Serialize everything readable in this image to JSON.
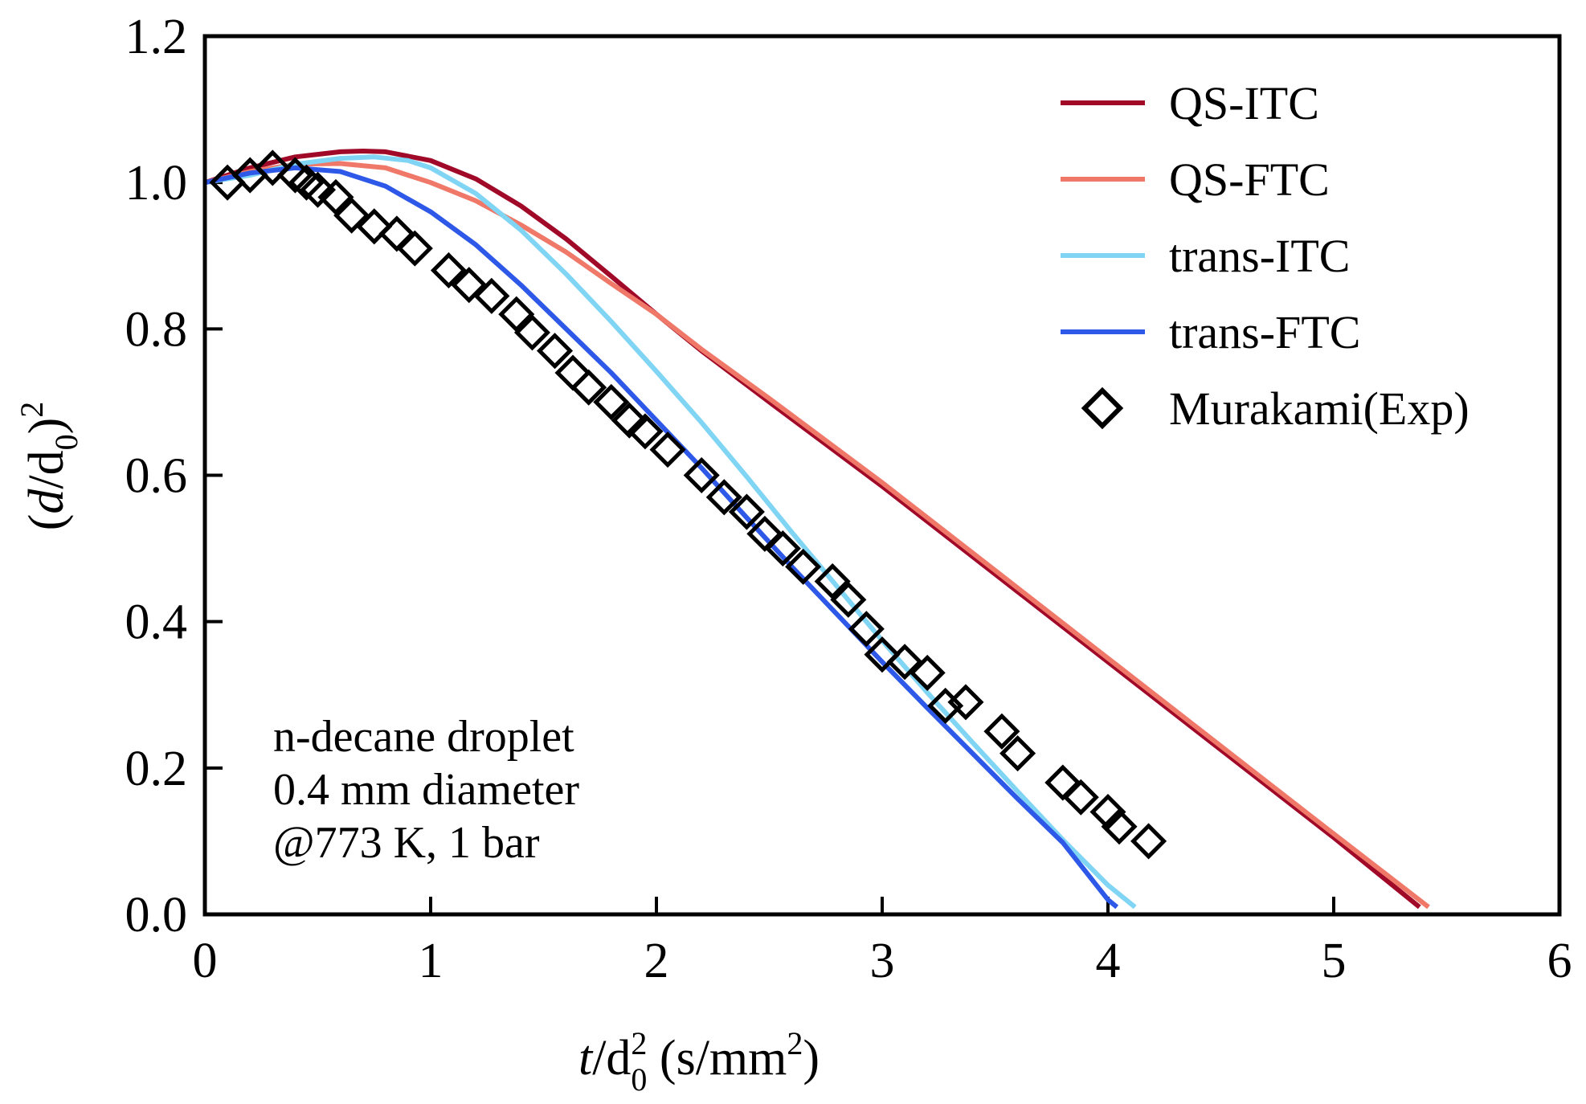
{
  "chart_data": {
    "type": "line",
    "xlim": [
      0,
      6
    ],
    "ylim": [
      0,
      1.2
    ],
    "xticks": [
      "0",
      "1",
      "2",
      "3",
      "4",
      "5",
      "6"
    ],
    "yticks": [
      "0.0",
      "0.2",
      "0.4",
      "0.6",
      "0.8",
      "1.0",
      "1.2"
    ],
    "xlabel": {
      "t": "t",
      "slash": "/d",
      "sub": "0",
      "sup": "2",
      "units": " (s/mm",
      "units_sup": "2",
      "close": ")"
    },
    "ylabel": {
      "open": "(",
      "d": "d",
      "slash": "/d",
      "sub": "0",
      "close": ")",
      "sup": "2"
    },
    "grid": false,
    "legend_position": "top-right",
    "annotation": [
      "n-decane droplet",
      "0.4 mm diameter",
      "@773 K, 1 bar"
    ],
    "series": [
      {
        "name": "QS-ITC",
        "kind": "line",
        "color": "#a00a28",
        "x": [
          0,
          0.2,
          0.4,
          0.6,
          0.7,
          0.8,
          1.0,
          1.2,
          1.4,
          1.6,
          1.8,
          2.0,
          2.2,
          2.5,
          3.0,
          3.5,
          4.0,
          4.5,
          5.0,
          5.38
        ],
        "y": [
          1.0,
          1.02,
          1.035,
          1.042,
          1.043,
          1.042,
          1.03,
          1.005,
          0.968,
          0.923,
          0.872,
          0.82,
          0.77,
          0.7,
          0.585,
          0.465,
          0.345,
          0.225,
          0.105,
          0.01
        ]
      },
      {
        "name": "QS-FTC",
        "kind": "line",
        "color": "#f07868",
        "x": [
          0,
          0.2,
          0.4,
          0.6,
          0.8,
          1.0,
          1.2,
          1.4,
          1.6,
          1.8,
          2.0,
          2.2,
          2.5,
          3.0,
          3.5,
          4.0,
          4.5,
          5.0,
          5.42
        ],
        "y": [
          1.0,
          1.015,
          1.025,
          1.026,
          1.02,
          1.0,
          0.975,
          0.942,
          0.905,
          0.862,
          0.82,
          0.772,
          0.705,
          0.59,
          0.47,
          0.35,
          0.23,
          0.11,
          0.01
        ]
      },
      {
        "name": "trans-ITC",
        "kind": "line",
        "color": "#80d4f4",
        "x": [
          0,
          0.2,
          0.4,
          0.6,
          0.75,
          0.9,
          1.0,
          1.2,
          1.4,
          1.6,
          1.8,
          2.0,
          2.2,
          2.4,
          2.6,
          2.8,
          3.0,
          3.2,
          3.4,
          3.6,
          3.8,
          4.0,
          4.12
        ],
        "y": [
          1.0,
          1.01,
          1.025,
          1.033,
          1.035,
          1.03,
          1.02,
          0.985,
          0.935,
          0.875,
          0.81,
          0.742,
          0.672,
          0.598,
          0.522,
          0.448,
          0.374,
          0.303,
          0.235,
          0.168,
          0.102,
          0.04,
          0.01
        ]
      },
      {
        "name": "trans-FTC",
        "kind": "line",
        "color": "#2e58e8",
        "x": [
          0,
          0.2,
          0.4,
          0.6,
          0.8,
          1.0,
          1.2,
          1.4,
          1.6,
          1.8,
          2.0,
          2.2,
          2.4,
          2.6,
          2.8,
          3.0,
          3.2,
          3.4,
          3.6,
          3.8,
          4.0,
          4.04
        ],
        "y": [
          1.0,
          1.013,
          1.02,
          1.015,
          0.995,
          0.96,
          0.915,
          0.86,
          0.8,
          0.74,
          0.675,
          0.61,
          0.542,
          0.475,
          0.41,
          0.345,
          0.282,
          0.22,
          0.158,
          0.098,
          0.02,
          0.01
        ]
      },
      {
        "name": "Murakami(Exp)",
        "kind": "scatter",
        "color": "#000000",
        "x": [
          0.1,
          0.2,
          0.3,
          0.4,
          0.45,
          0.5,
          0.58,
          0.65,
          0.75,
          0.85,
          0.93,
          1.08,
          1.17,
          1.27,
          1.38,
          1.45,
          1.55,
          1.63,
          1.7,
          1.8,
          1.88,
          1.95,
          2.05,
          2.2,
          2.3,
          2.4,
          2.48,
          2.56,
          2.65,
          2.78,
          2.85,
          2.93,
          3.0,
          3.1,
          3.2,
          3.28,
          3.37,
          3.53,
          3.6,
          3.8,
          3.88,
          4.0,
          4.05,
          4.18
        ],
        "y": [
          1.0,
          1.01,
          1.02,
          1.01,
          1.0,
          0.99,
          0.98,
          0.955,
          0.94,
          0.93,
          0.91,
          0.88,
          0.86,
          0.845,
          0.82,
          0.795,
          0.77,
          0.74,
          0.72,
          0.7,
          0.675,
          0.66,
          0.635,
          0.6,
          0.57,
          0.55,
          0.52,
          0.5,
          0.475,
          0.455,
          0.43,
          0.39,
          0.355,
          0.345,
          0.33,
          0.285,
          0.29,
          0.25,
          0.22,
          0.18,
          0.16,
          0.14,
          0.12,
          0.1
        ]
      }
    ]
  }
}
